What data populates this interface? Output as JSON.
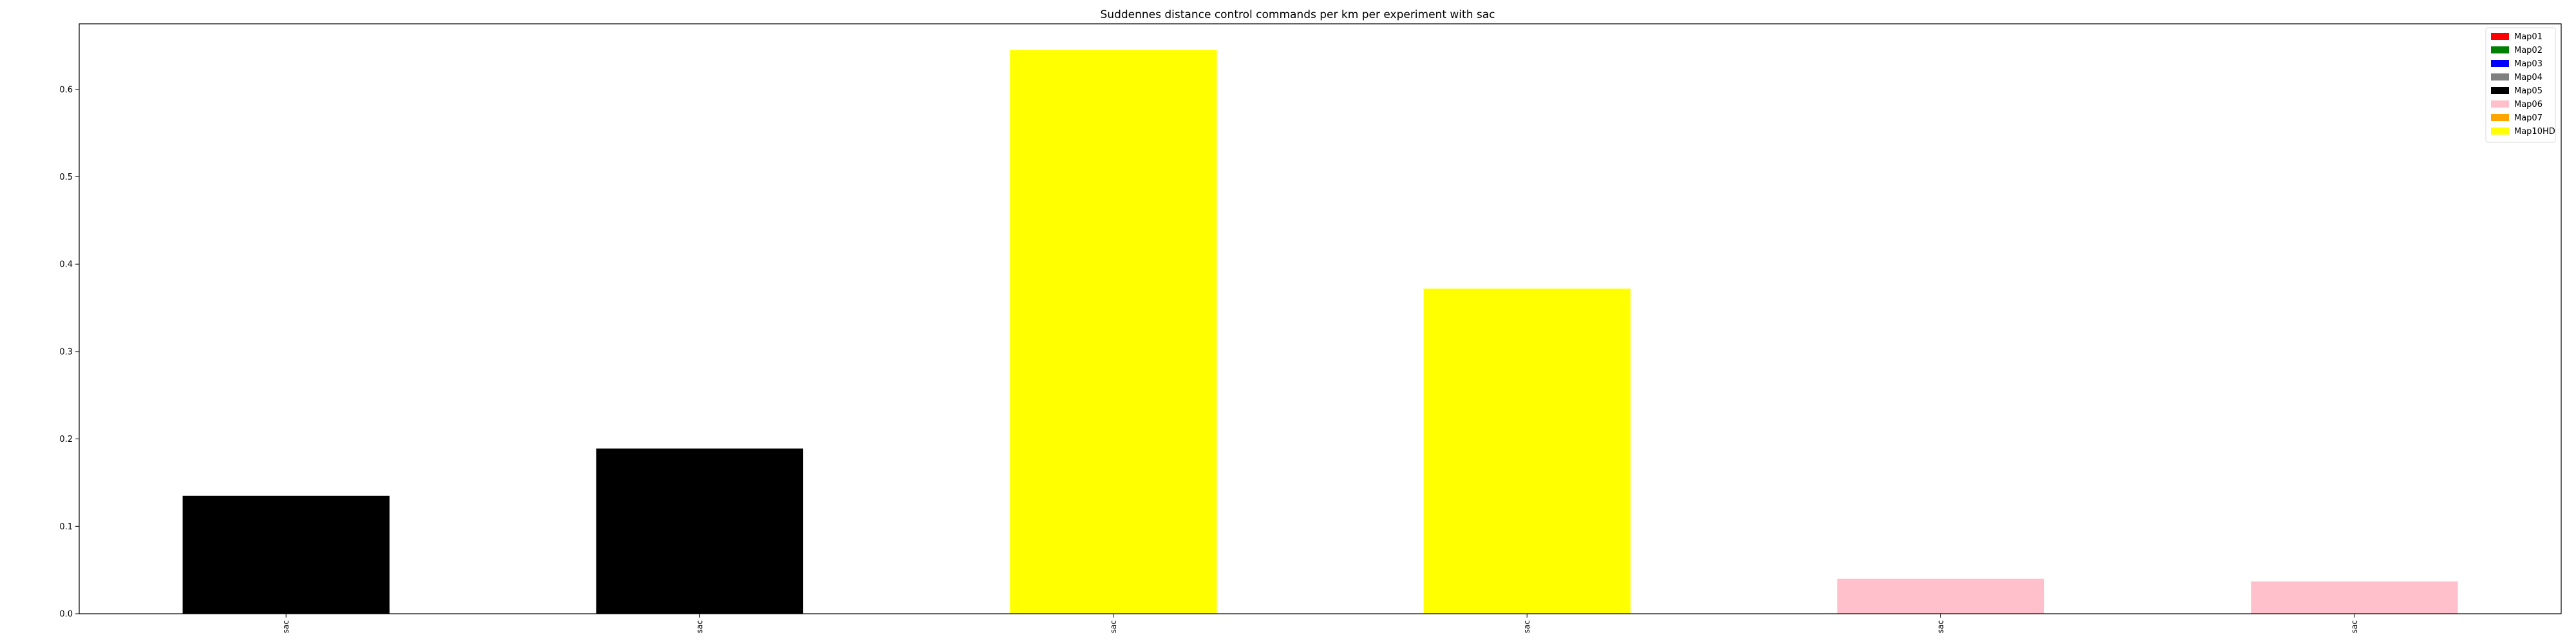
{
  "chart_data": {
    "type": "bar",
    "title": "Suddennes distance control commands per km per experiment with sac",
    "xlabel": "",
    "ylabel": "",
    "categories": [
      "sac",
      "sac",
      "sac",
      "sac",
      "sac",
      "sac"
    ],
    "values": [
      0.135,
      0.189,
      0.645,
      0.372,
      0.04,
      0.037
    ],
    "bar_map": [
      "Map05",
      "Map05",
      "Map10HD",
      "Map10HD",
      "Map06",
      "Map06"
    ],
    "ylim": [
      0,
      0.675
    ],
    "yticks": [
      0.0,
      0.1,
      0.2,
      0.3,
      0.4,
      0.5,
      0.6
    ],
    "ytick_labels": [
      "0.0",
      "0.1",
      "0.2",
      "0.3",
      "0.4",
      "0.5",
      "0.6"
    ],
    "grid": false,
    "legend_position": "top-right",
    "legend": [
      {
        "label": "Map01",
        "color": "#ff0000"
      },
      {
        "label": "Map02",
        "color": "#008000"
      },
      {
        "label": "Map03",
        "color": "#0000ff"
      },
      {
        "label": "Map04",
        "color": "#808080"
      },
      {
        "label": "Map05",
        "color": "#000000"
      },
      {
        "label": "Map06",
        "color": "#ffc0cb"
      },
      {
        "label": "Map07",
        "color": "#ffa500"
      },
      {
        "label": "Map10HD",
        "color": "#ffff00"
      }
    ]
  }
}
